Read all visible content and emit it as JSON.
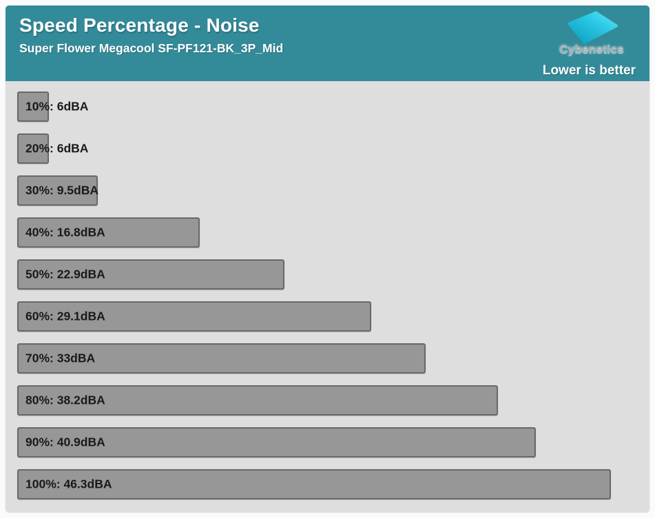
{
  "header": {
    "title": "Speed Percentage - Noise",
    "subtitle": "Super Flower Megacool SF-PF121-BK_3P_Mid",
    "brand": "Cybenetics",
    "note": "Lower is better"
  },
  "colors": {
    "page_bg": "#fbfbfb",
    "header_teal": "#338b99",
    "chart_bg": "#dedede",
    "header_text": "#ffffff",
    "brand_text": "#a8acaf",
    "bar_fill": "#979797",
    "bar_border": "#686868",
    "bar_label": "#191919",
    "logo_cyan_deep": "#0c9cbd",
    "logo_cyan_bright": "#55e5fa"
  },
  "chart_data": {
    "type": "bar",
    "orientation": "horizontal",
    "title": "Speed Percentage - Noise",
    "subtitle": "Super Flower Megacool SF-PF121-BK_3P_Mid",
    "note": "Lower is better",
    "unit": "dBA",
    "categories": [
      "10%",
      "20%",
      "30%",
      "40%",
      "50%",
      "60%",
      "70%",
      "80%",
      "90%",
      "100%"
    ],
    "values": [
      6,
      6,
      9.5,
      16.8,
      22.9,
      29.1,
      33,
      38.2,
      40.9,
      46.3
    ],
    "labels": [
      "10%: 6dBA",
      "20%: 6dBA",
      "30%: 9.5dBA",
      "40%: 16.8dBA",
      "50%: 22.9dBA",
      "60%: 29.1dBA",
      "70%: 33dBA",
      "80%: 38.2dBA",
      "90%: 40.9dBA",
      "100%: 46.3dBA"
    ],
    "legend": null,
    "grid": false
  }
}
